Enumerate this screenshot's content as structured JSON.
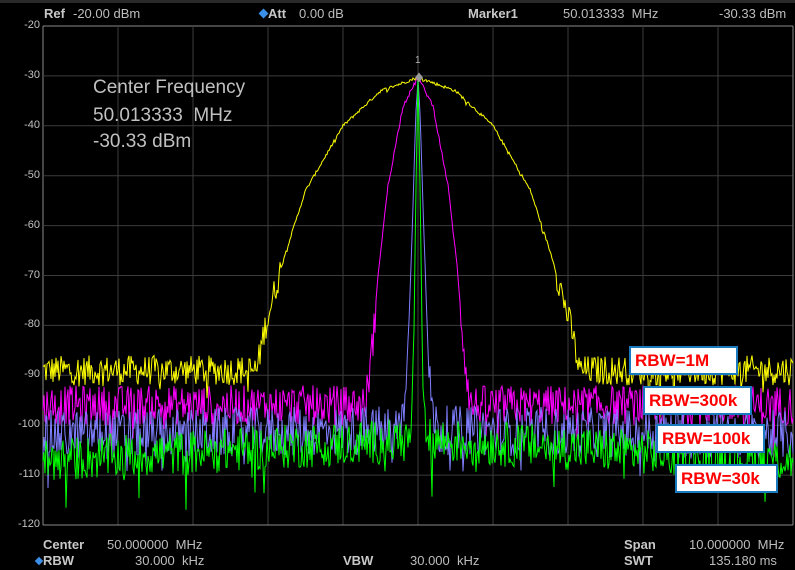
{
  "header": {
    "ref_label": "Ref",
    "ref_value": "-20.00 dBm",
    "att_label": "Att",
    "att_value": "0.00 dB",
    "marker_label": "Marker1",
    "marker_freq": "50.013333  MHz",
    "marker_level": "-30.33 dBm"
  },
  "footer": {
    "center_label": "Center",
    "center_value": "50.000000  MHz",
    "span_label": "Span",
    "span_value": "10.000000  MHz",
    "rbw_label": "RBW",
    "rbw_value": "30.000  kHz",
    "vbw_label": "VBW",
    "vbw_value": "30.000  kHz",
    "swt_label": "SWT",
    "swt_value": "135.180 ms"
  },
  "marker_readout": {
    "title": "Center Frequency",
    "freq": "50.013333  MHz",
    "level": "-30.33 dBm",
    "marker_number": "1"
  },
  "colors": {
    "rbw_1M": "#ffff00",
    "rbw_300k": "#ff00ff",
    "rbw_100k": "#7f7fff",
    "rbw_30k": "#00ff00",
    "grid": "#3c3c3c",
    "label_text": "#ff0000",
    "label_border": "#1a7ac0"
  },
  "chart_data": {
    "type": "line",
    "xlim": [
      45,
      55
    ],
    "x_unit": "MHz",
    "ylim": [
      -120,
      -20
    ],
    "y_unit": "dBm",
    "yticks": [
      "-20",
      "-30",
      "-40",
      "-50",
      "-60",
      "-70",
      "-80",
      "-90",
      "-100",
      "-110",
      "-120"
    ],
    "grid": true,
    "marker": {
      "x": 50.013333,
      "y": -30.33
    },
    "series": [
      {
        "name": "RBW=1M",
        "color": "#ffff00",
        "x": [
          45,
          47.85,
          47.95,
          48.2,
          48.5,
          49.0,
          49.5,
          50.0,
          50.5,
          51.0,
          51.5,
          51.8,
          52.05,
          52.15,
          55
        ],
        "y": [
          -89,
          -89,
          -81,
          -67,
          -53,
          -40,
          -33,
          -30.3,
          -33,
          -40,
          -53,
          -67,
          -81,
          -89,
          -89
        ]
      },
      {
        "name": "RBW=300k",
        "color": "#ff00ff",
        "x": [
          45,
          49.3,
          49.38,
          49.48,
          49.6,
          49.8,
          50.0,
          50.2,
          50.4,
          50.52,
          50.62,
          50.7,
          55
        ],
        "y": [
          -96,
          -96,
          -86,
          -68,
          -52,
          -36,
          -30.3,
          -36,
          -52,
          -68,
          -86,
          -96,
          -96
        ]
      },
      {
        "name": "RBW=100k",
        "color": "#7f7fff",
        "x": [
          45,
          49.75,
          49.85,
          49.92,
          49.97,
          50.0,
          50.03,
          50.08,
          50.15,
          50.25,
          55
        ],
        "y": [
          -102,
          -101,
          -92,
          -62,
          -38,
          -30.3,
          -38,
          -62,
          -92,
          -101,
          -102
        ]
      },
      {
        "name": "RBW=30k",
        "color": "#00ff00",
        "x": [
          45,
          49.9,
          49.94,
          49.97,
          50.0,
          50.03,
          50.06,
          50.1,
          55
        ],
        "y": [
          -107,
          -103,
          -88,
          -55,
          -30.5,
          -55,
          -88,
          -103,
          -107
        ]
      }
    ]
  }
}
